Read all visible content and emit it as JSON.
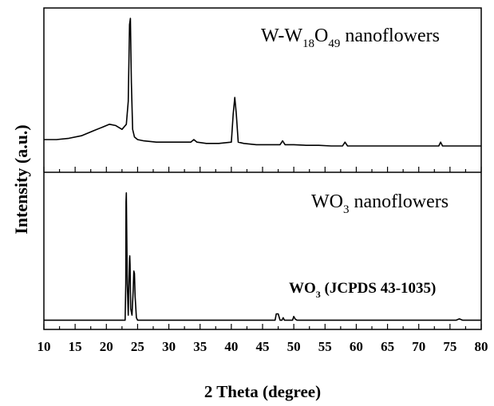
{
  "chart_data": [
    {
      "type": "line",
      "panel": "top",
      "series": [
        {
          "name": "W-W18O49 nanoflowers",
          "x": [
            10,
            12,
            14,
            16,
            18,
            19.5,
            20.5,
            21.5,
            22.5,
            23.2,
            23.5,
            23.7,
            23.85,
            24.0,
            24.2,
            24.5,
            25,
            26,
            28,
            30,
            32,
            33.5,
            34,
            34.5,
            36,
            38,
            40,
            40.3,
            40.55,
            40.8,
            41.1,
            42,
            44,
            46,
            47.8,
            48.2,
            48.6,
            50,
            52,
            54,
            56,
            57.8,
            58.2,
            58.6,
            60,
            65,
            70,
            73.2,
            73.5,
            73.8,
            76,
            80
          ],
          "y": [
            0.1,
            0.1,
            0.11,
            0.13,
            0.17,
            0.2,
            0.22,
            0.21,
            0.18,
            0.22,
            0.4,
            1.0,
            1.05,
            0.55,
            0.18,
            0.12,
            0.1,
            0.09,
            0.08,
            0.08,
            0.08,
            0.08,
            0.1,
            0.08,
            0.07,
            0.07,
            0.08,
            0.3,
            0.43,
            0.3,
            0.08,
            0.07,
            0.06,
            0.06,
            0.06,
            0.09,
            0.06,
            0.06,
            0.055,
            0.055,
            0.05,
            0.05,
            0.08,
            0.05,
            0.05,
            0.05,
            0.05,
            0.05,
            0.08,
            0.05,
            0.05,
            0.05
          ]
        }
      ],
      "annotations": [
        {
          "base": "W-W",
          "sub1": "18",
          "mid": "O",
          "sub2": "49",
          "tail": " nanoflowers"
        }
      ]
    },
    {
      "type": "line",
      "panel": "bottom",
      "series": [
        {
          "name": "WO3 nanoflowers",
          "x": [
            10,
            23.0,
            23.1,
            23.15,
            23.2,
            23.35,
            23.5,
            23.6,
            23.7,
            23.75,
            23.8,
            23.9,
            24.1,
            24.3,
            24.4,
            24.5,
            24.6,
            24.8,
            25.0,
            47.0,
            47.2,
            47.5,
            47.8,
            48.1,
            48.3,
            48.5,
            49.8,
            50.0,
            50.2,
            50.5,
            76,
            76.5,
            77,
            80
          ],
          "y": [
            0.01,
            0.01,
            0.3,
            0.95,
            1.02,
            0.3,
            0.05,
            0.3,
            0.5,
            0.52,
            0.45,
            0.1,
            0.05,
            0.25,
            0.4,
            0.38,
            0.2,
            0.03,
            0.01,
            0.01,
            0.06,
            0.06,
            0.01,
            0.01,
            0.03,
            0.01,
            0.01,
            0.04,
            0.02,
            0.01,
            0.01,
            0.02,
            0.01,
            0.01
          ]
        }
      ],
      "annotations": [
        {
          "base": "WO",
          "sub": "3",
          "tail": " nanoflowers"
        },
        {
          "base": "WO",
          "sub": "3",
          "tail": " (JCPDS 43-1035)"
        }
      ]
    }
  ],
  "axes": {
    "xlabel": "2 Theta (degree)",
    "ylabel": "Intensity (a.u.)",
    "xlim": [
      10,
      80
    ],
    "ticks": [
      "10",
      "15",
      "20",
      "25",
      "30",
      "35",
      "40",
      "45",
      "50",
      "55",
      "60",
      "65",
      "70",
      "75",
      "80"
    ],
    "grid": false
  }
}
